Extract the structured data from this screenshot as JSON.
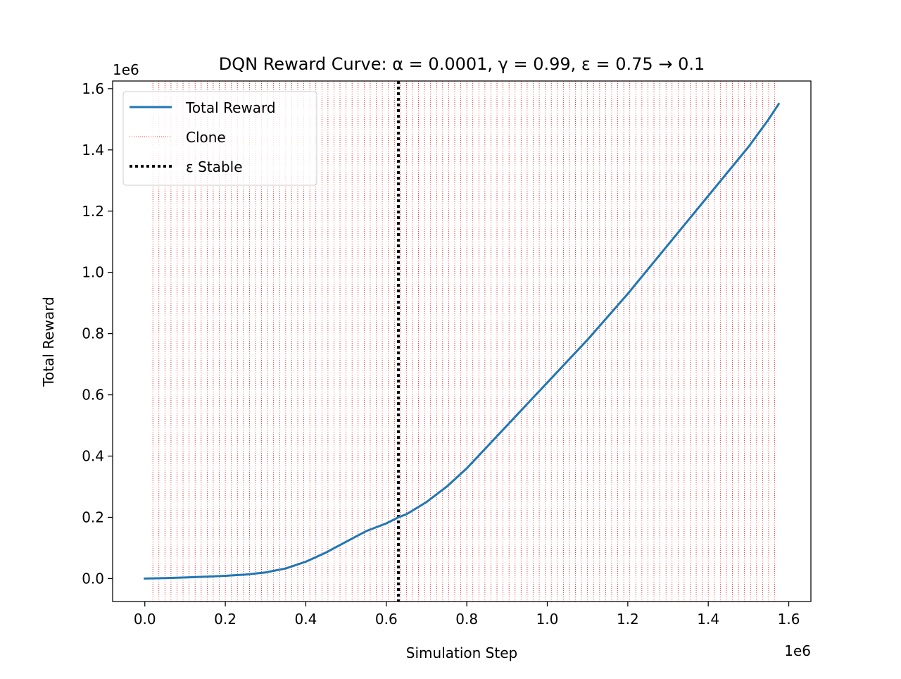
{
  "chart_data": {
    "type": "line",
    "title": "DQN Reward Curve: α = 0.0001, γ = 0.99, ε = 0.75 → 0.1",
    "xlabel": "Simulation Step",
    "ylabel": "Total Reward",
    "x_offset_label": "1e6",
    "y_offset_label": "1e6",
    "xlim": [
      -80000,
      1655000
    ],
    "ylim": [
      -75000,
      1625000
    ],
    "x_ticks": [
      0,
      200000,
      400000,
      600000,
      800000,
      1000000,
      1200000,
      1400000,
      1600000
    ],
    "x_tick_labels": [
      "0.0",
      "0.2",
      "0.4",
      "0.6",
      "0.8",
      "1.0",
      "1.2",
      "1.4",
      "1.6"
    ],
    "y_ticks": [
      0,
      200000,
      400000,
      600000,
      800000,
      1000000,
      1200000,
      1400000,
      1600000
    ],
    "y_tick_labels": [
      "0.0",
      "0.2",
      "0.4",
      "0.6",
      "0.8",
      "1.0",
      "1.2",
      "1.4",
      "1.6"
    ],
    "grid": false,
    "legend_position": "upper-left",
    "legend": [
      {
        "label": "Total Reward",
        "style": "solid",
        "color": "#1f77b4"
      },
      {
        "label": "Clone",
        "style": "dotted-thin",
        "color": "#ff0000"
      },
      {
        "label": "ε Stable",
        "style": "dotted-thick",
        "color": "#000000"
      }
    ],
    "series": [
      {
        "name": "Total Reward",
        "color": "#1f77b4",
        "x": [
          0,
          50000,
          100000,
          150000,
          200000,
          250000,
          300000,
          350000,
          400000,
          450000,
          500000,
          550000,
          600000,
          630000,
          650000,
          700000,
          750000,
          800000,
          850000,
          900000,
          950000,
          1000000,
          1050000,
          1100000,
          1150000,
          1200000,
          1250000,
          1300000,
          1350000,
          1400000,
          1450000,
          1500000,
          1550000,
          1575000
        ],
        "y": [
          0,
          1500,
          3500,
          6000,
          9000,
          13000,
          20000,
          33000,
          55000,
          85000,
          120000,
          155000,
          180000,
          200000,
          210000,
          250000,
          300000,
          360000,
          430000,
          500000,
          570000,
          640000,
          710000,
          780000,
          855000,
          930000,
          1010000,
          1090000,
          1170000,
          1250000,
          1330000,
          1410000,
          1500000,
          1550000
        ]
      }
    ],
    "clone_lines": {
      "label": "Clone",
      "color": "#ff0000",
      "start": 20000,
      "step": 15000,
      "end": 1570000
    },
    "epsilon_stable": {
      "label": "ε Stable",
      "color": "#000000",
      "x": 630000
    }
  }
}
